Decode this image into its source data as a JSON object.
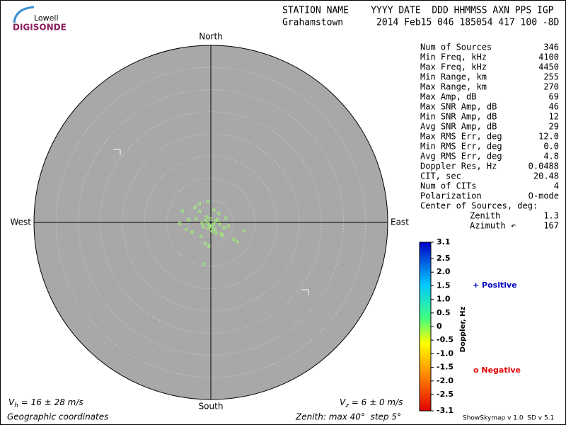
{
  "header": {
    "logo_top": "Lowell",
    "logo_bottom": "DIGISONDE",
    "columns": "STATION NAME    YYYY DATE  DDD HHMMSS AXN PPS IGP",
    "values": "Grahamstown      2014 Feb15 046 185054 417 100 -8D"
  },
  "chart_data": {
    "type": "skymap",
    "north": "North",
    "south": "South",
    "west": "West",
    "east": "East",
    "rlim": [
      0,
      40
    ],
    "rticks": [
      5,
      10,
      15,
      20,
      25,
      30,
      35,
      40
    ],
    "color": "#9cff6a",
    "points": {
      "x": [
        -0.3,
        -0.8,
        0.2,
        -1.2,
        0.6,
        -0.5,
        1.0,
        -1.6,
        0.9,
        -0.1,
        -2.0,
        1.5,
        -0.9,
        0.3,
        -2.6,
        2.4,
        -3.3,
        3.0,
        -6.4,
        -5.0,
        7.4,
        -1.6,
        5.2,
        -4.2,
        -2.6,
        1.8,
        -0.4,
        4.0,
        -7.0,
        2.6,
        -3.6,
        0.7,
        -1.2,
        3.4,
        6.0,
        -5.6,
        1.2,
        -0.7,
        2.0,
        -2.2
      ],
      "y": [
        -0.6,
        -0.2,
        -1.0,
        0.4,
        -0.4,
        -1.4,
        0.2,
        -1.0,
        -1.6,
        0.8,
        -0.2,
        0.6,
        1.2,
        -2.0,
        2.4,
        -2.6,
        0.8,
        -1.2,
        2.6,
        0.6,
        -1.9,
        -9.4,
        -3.8,
        -2.2,
        4.2,
        2.0,
        -5.4,
        -0.8,
        -0.2,
        -3.0,
        3.4,
        2.8,
        -4.8,
        1.0,
        -4.4,
        -1.6,
        -2.4,
        4.6,
        -0.4,
        -3.2
      ]
    }
  },
  "stats": [
    {
      "label": "Num of Sources",
      "value": "346"
    },
    {
      "label": "Min Freq, kHz",
      "value": "4100"
    },
    {
      "label": "Max Freq, kHz",
      "value": "4450"
    },
    {
      "label": "Min Range, km",
      "value": "255"
    },
    {
      "label": "Max Range, km",
      "value": "270"
    },
    {
      "label": "Max Amp, dB",
      "value": "69"
    },
    {
      "label": "Max SNR Amp, dB",
      "value": "46"
    },
    {
      "label": "Min SNR Amp, dB",
      "value": "12"
    },
    {
      "label": "Avg SNR Amp, dB",
      "value": "29"
    },
    {
      "label": "Max RMS Err, deg",
      "value": "12.0"
    },
    {
      "label": "Min RMS Err, deg",
      "value": "0.0"
    },
    {
      "label": "Avg RMS Err, deg",
      "value": "4.8"
    },
    {
      "label": "Doppler Res, Hz",
      "value": "0.0488"
    },
    {
      "label": "CIT, sec",
      "value": "20.48"
    },
    {
      "label": "Num of CITs",
      "value": "4"
    },
    {
      "label": "Polarization",
      "value": "O-mode"
    },
    {
      "label": "Center of Sources, deg:"
    },
    {
      "label": "Zenith",
      "value": "1.3",
      "indent": true
    },
    {
      "label": "Azimuth ↶",
      "value": "167",
      "indent": true
    }
  ],
  "colorbar": {
    "title": "Doppler, Hz",
    "ylim": [
      -3.1,
      3.1
    ],
    "yticks": [
      3.1,
      2.5,
      {
        "value": 2,
        "label": "2.0"
      },
      1.5,
      {
        "value": 1,
        "label": "1.0"
      },
      0.5,
      0,
      -0.5,
      {
        "value": -1,
        "label": "-1.0"
      },
      -1.5,
      {
        "value": -2,
        "label": "-2.0"
      },
      -2.5,
      -3.1
    ]
  },
  "legend": {
    "positive": "+ Positive",
    "negative": "o Negative"
  },
  "footer": {
    "vh": {
      "symbol": "V",
      "sub": "h",
      "text": " = 16 ± 28 m/s"
    },
    "vz": {
      "symbol": "V",
      "sub": "z",
      "text": " = 6 ± 0 m/s"
    },
    "coords": "Geographic coordinates",
    "zenith": "Zenith: max 40°  step 5°",
    "version": "ShowSkymap v 1.0  SD v 5.1"
  }
}
